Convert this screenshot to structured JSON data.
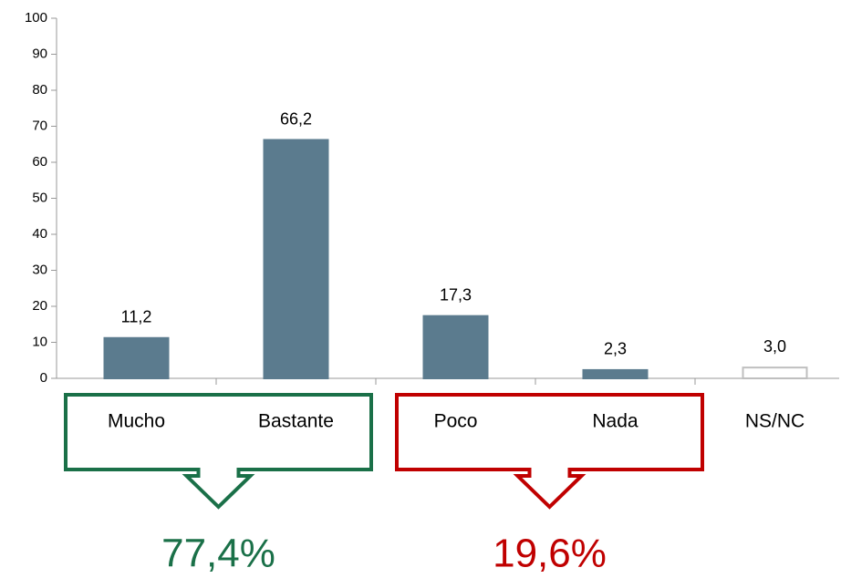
{
  "chart_data": {
    "type": "bar",
    "categories": [
      "Mucho",
      "Bastante",
      "Poco",
      "Nada",
      "NS/NC"
    ],
    "values": [
      11.2,
      66.2,
      17.3,
      2.3,
      3.0
    ],
    "value_labels": [
      "11,2",
      "66,2",
      "17,3",
      "2,3",
      "3,0"
    ],
    "colors": [
      "#5b7b8e",
      "#5b7b8e",
      "#5b7b8e",
      "#5b7b8e",
      "#ffffff"
    ],
    "edgecolors": [
      "#5b7b8e",
      "#5b7b8e",
      "#5b7b8e",
      "#5b7b8e",
      "#bfbfbf"
    ],
    "ylim": [
      0,
      100
    ],
    "yticks": [
      0,
      10,
      20,
      30,
      40,
      50,
      60,
      70,
      80,
      90,
      100
    ],
    "annotations": [
      {
        "text": "77,4%",
        "color": "#1a7048"
      },
      {
        "text": "19,6%",
        "color": "#c00000"
      }
    ]
  }
}
